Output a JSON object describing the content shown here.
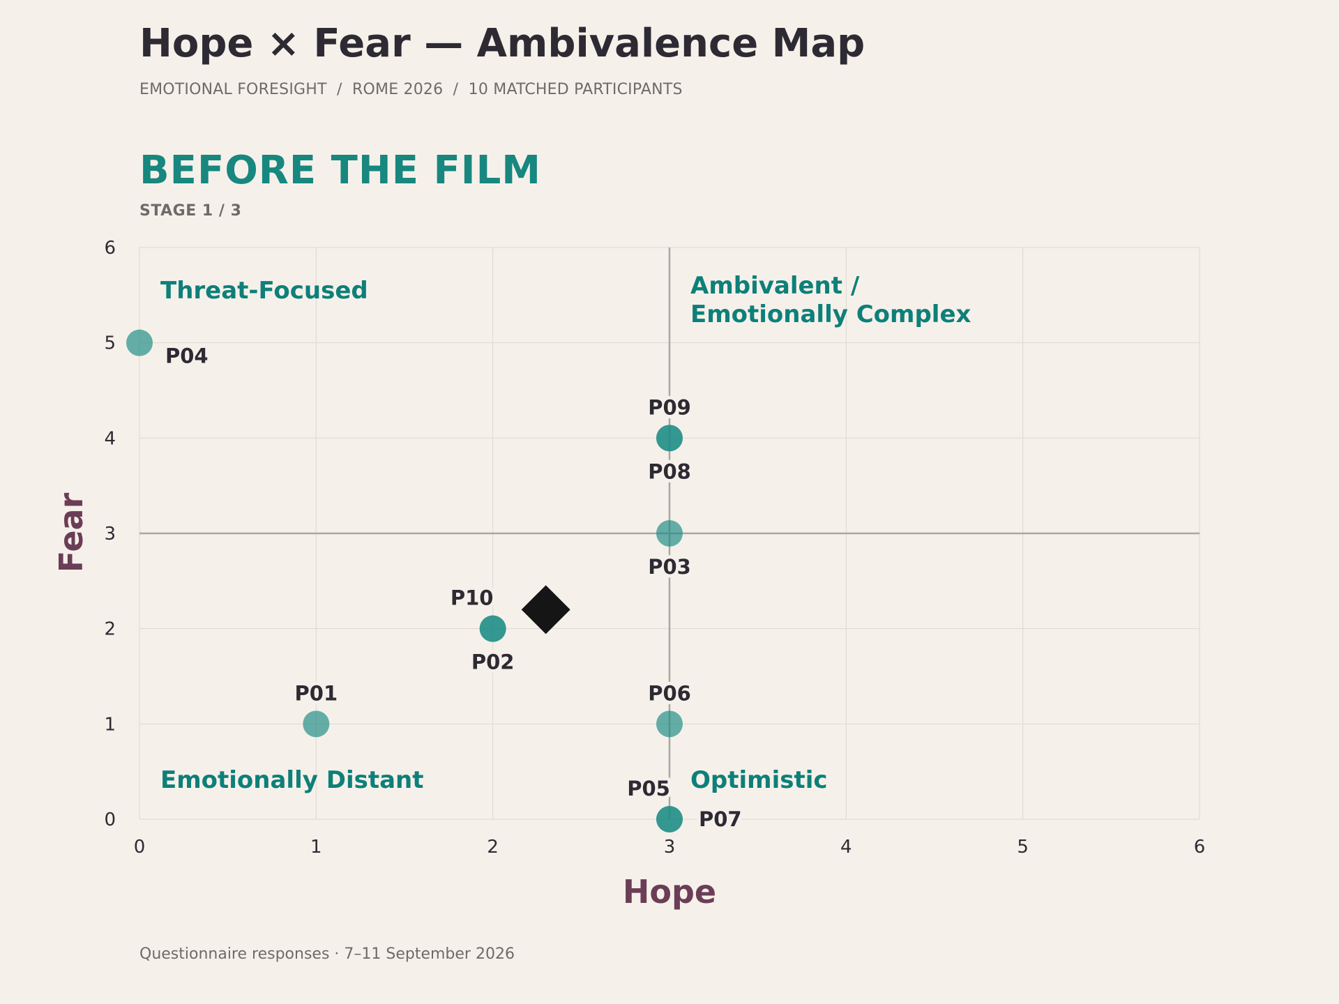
{
  "header": {
    "title": "Hope × Fear — Ambivalence Map",
    "subtitle": "EMOTIONAL FORESIGHT  /  ROME 2026  /  10 MATCHED PARTICIPANTS"
  },
  "stage": {
    "title": "BEFORE THE FILM",
    "label": "STAGE 1 / 3"
  },
  "footnote": "Questionnaire responses · 7–11 September 2026",
  "colors": {
    "background": "#f5f1ea",
    "point": "#1e8c86",
    "quadrant_label": "#0e7f79",
    "axis_label": "#6b3d56",
    "mean_marker": "#151515",
    "text": "#2d2a33"
  },
  "chart_data": {
    "type": "scatter",
    "xlabel": "Hope",
    "ylabel": "Fear",
    "xlim": [
      0,
      6
    ],
    "ylim": [
      0,
      6
    ],
    "xticks": [
      "0",
      "1",
      "2",
      "3",
      "4",
      "5",
      "6"
    ],
    "yticks": [
      "0",
      "1",
      "2",
      "3",
      "4",
      "5",
      "6"
    ],
    "grid": true,
    "midlines": {
      "x": 3,
      "y": 3
    },
    "quadrants": {
      "top_left": "Threat-Focused",
      "top_right": [
        "Ambivalent /",
        "Emotionally Complex"
      ],
      "bottom_left": "Emotionally Distant",
      "bottom_right": "Optimistic"
    },
    "points": [
      {
        "id": "P01",
        "x": 1,
        "y": 1,
        "label_pos": "above"
      },
      {
        "id": "P02",
        "x": 2,
        "y": 2,
        "label_pos": "below"
      },
      {
        "id": "P03",
        "x": 3,
        "y": 3,
        "label_pos": "below"
      },
      {
        "id": "P04",
        "x": 0,
        "y": 5,
        "label_pos": "below-right"
      },
      {
        "id": "P05",
        "x": 3,
        "y": 0,
        "label_pos": "above-left"
      },
      {
        "id": "P06",
        "x": 3,
        "y": 1,
        "label_pos": "above"
      },
      {
        "id": "P07",
        "x": 3,
        "y": 0,
        "label_pos": "right"
      },
      {
        "id": "P08",
        "x": 3,
        "y": 4,
        "label_pos": "below"
      },
      {
        "id": "P09",
        "x": 3,
        "y": 4,
        "label_pos": "above"
      },
      {
        "id": "P10",
        "x": 2,
        "y": 2,
        "label_pos": "above-left"
      }
    ],
    "mean": {
      "x": 2.3,
      "y": 2.2,
      "marker": "diamond"
    }
  }
}
